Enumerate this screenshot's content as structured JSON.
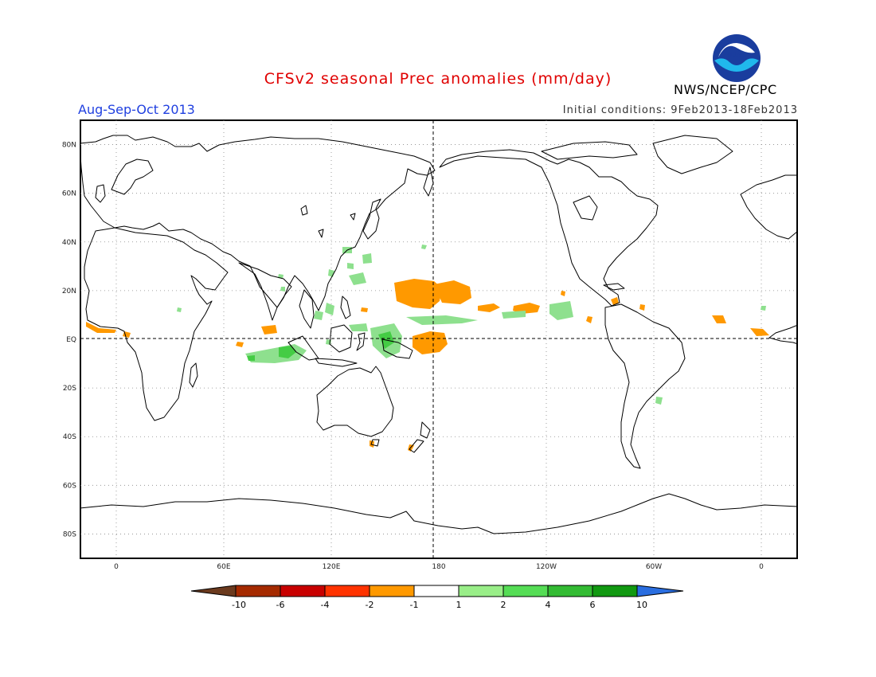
{
  "title": "CFSv2 seasonal Prec anomalies (mm/day)",
  "season": "Aug-Sep-Oct 2013",
  "initial_conditions": "Initial conditions: 9Feb2013-18Feb2013",
  "organization": "NWS/NCEP/CPC",
  "logo": {
    "text": "NOAA",
    "icon": "noaa-logo-icon"
  },
  "map": {
    "lat_labels": [
      "80N",
      "60N",
      "40N",
      "20N",
      "EQ",
      "20S",
      "40S",
      "60S",
      "80S"
    ],
    "lat_values": [
      80,
      60,
      40,
      20,
      0,
      -20,
      -40,
      -60,
      -80
    ],
    "lon_labels": [
      "0",
      "60E",
      "120E",
      "180",
      "120W",
      "60W",
      "0"
    ],
    "lon_values": [
      0,
      60,
      120,
      180,
      240,
      300,
      360
    ],
    "lon_range": [
      -20,
      380
    ],
    "lat_range": [
      -90,
      90
    ],
    "dateline_label": "180"
  },
  "colorbar": {
    "labels": [
      "-10",
      "-6",
      "-4",
      "-2",
      "-1",
      "1",
      "2",
      "4",
      "6",
      "10"
    ],
    "colors": [
      "#a52a00",
      "#c80000",
      "#ff3300",
      "#ff9900",
      "#ffffff",
      "#99ee88",
      "#55dd55",
      "#33bb33",
      "#119911",
      "#2277ee"
    ],
    "end_colors": {
      "low": "#6b3a1e",
      "high": "#2a6ee0"
    }
  },
  "colors": {
    "positive": "#7ee07e",
    "strong_positive": "#44cc44",
    "negative": "#ff9900"
  }
}
